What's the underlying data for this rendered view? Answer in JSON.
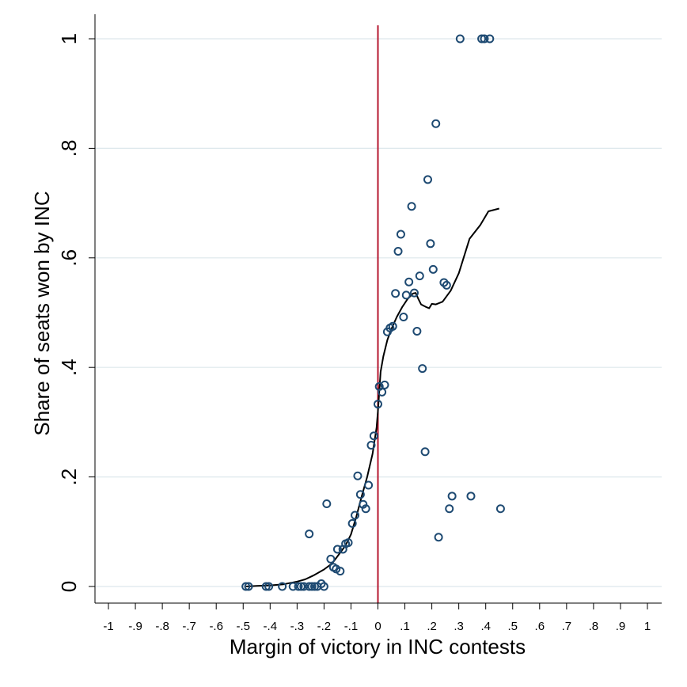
{
  "chart_data": {
    "type": "scatter",
    "title": "",
    "xlabel": "Margin of victory in INC contests",
    "ylabel": "Share of seats won by INC",
    "xlim": [
      -1,
      1
    ],
    "ylim": [
      0,
      1
    ],
    "x_ticks": [
      -1,
      -0.9,
      -0.8,
      -0.7,
      -0.6,
      -0.5,
      -0.4,
      -0.3,
      -0.2,
      -0.1,
      0,
      0.1,
      0.2,
      0.3,
      0.4,
      0.5,
      0.6,
      0.7,
      0.8,
      0.9,
      1
    ],
    "x_tick_labels": [
      "-1",
      "-.9",
      "-.8",
      "-.7",
      "-.6",
      "-.5",
      "-.4",
      "-.3",
      "-.2",
      "-.1",
      "0",
      ".1",
      ".2",
      ".3",
      ".4",
      ".5",
      ".6",
      ".7",
      ".8",
      ".9",
      "1"
    ],
    "y_ticks": [
      0,
      0.2,
      0.4,
      0.6,
      0.8,
      1
    ],
    "y_tick_labels": [
      "0",
      ".2",
      ".4",
      ".6",
      ".8",
      "1"
    ],
    "grid": true,
    "reference_line": {
      "x": 0,
      "color": "#b5172f"
    },
    "colors": {
      "points": "#1e4a72",
      "fit": "#000000",
      "grid": "#dde8ec"
    },
    "series": [
      {
        "type": "scatter",
        "points": [
          [
            -0.49,
            0
          ],
          [
            -0.48,
            0
          ],
          [
            -0.415,
            0
          ],
          [
            -0.405,
            0
          ],
          [
            -0.355,
            0
          ],
          [
            -0.315,
            0
          ],
          [
            -0.295,
            0
          ],
          [
            -0.285,
            0
          ],
          [
            -0.275,
            0
          ],
          [
            -0.255,
            0
          ],
          [
            -0.245,
            0
          ],
          [
            -0.235,
            0
          ],
          [
            -0.225,
            0
          ],
          [
            -0.21,
            0.005
          ],
          [
            -0.2,
            0
          ],
          [
            -0.255,
            0.096
          ],
          [
            -0.19,
            0.151
          ],
          [
            -0.175,
            0.05
          ],
          [
            -0.165,
            0.035
          ],
          [
            -0.155,
            0.032
          ],
          [
            -0.15,
            0.068
          ],
          [
            -0.14,
            0.028
          ],
          [
            -0.13,
            0.068
          ],
          [
            -0.12,
            0.078
          ],
          [
            -0.11,
            0.08
          ],
          [
            -0.095,
            0.115
          ],
          [
            -0.085,
            0.13
          ],
          [
            -0.075,
            0.202
          ],
          [
            -0.065,
            0.168
          ],
          [
            -0.055,
            0.15
          ],
          [
            -0.045,
            0.142
          ],
          [
            -0.035,
            0.185
          ],
          [
            -0.025,
            0.258
          ],
          [
            -0.015,
            0.275
          ],
          [
            0,
            0.333
          ],
          [
            0.005,
            0.365
          ],
          [
            0.015,
            0.355
          ],
          [
            0.025,
            0.368
          ],
          [
            0.035,
            0.465
          ],
          [
            0.045,
            0.472
          ],
          [
            0.055,
            0.475
          ],
          [
            0.065,
            0.535
          ],
          [
            0.075,
            0.612
          ],
          [
            0.085,
            0.643
          ],
          [
            0.095,
            0.492
          ],
          [
            0.105,
            0.532
          ],
          [
            0.115,
            0.556
          ],
          [
            0.125,
            0.694
          ],
          [
            0.135,
            0.536
          ],
          [
            0.145,
            0.466
          ],
          [
            0.155,
            0.567
          ],
          [
            0.165,
            0.398
          ],
          [
            0.175,
            0.246
          ],
          [
            0.185,
            0.743
          ],
          [
            0.195,
            0.626
          ],
          [
            0.205,
            0.579
          ],
          [
            0.215,
            0.845
          ],
          [
            0.225,
            0.09
          ],
          [
            0.245,
            0.555
          ],
          [
            0.255,
            0.55
          ],
          [
            0.265,
            0.142
          ],
          [
            0.275,
            0.165
          ],
          [
            0.305,
            1
          ],
          [
            0.345,
            0.165
          ],
          [
            0.385,
            1
          ],
          [
            0.395,
            1
          ],
          [
            0.415,
            1
          ],
          [
            0.455,
            0.142
          ]
        ]
      },
      {
        "type": "line",
        "points": [
          [
            -0.49,
            0
          ],
          [
            -0.45,
            0.001
          ],
          [
            -0.4,
            0.002
          ],
          [
            -0.35,
            0.004
          ],
          [
            -0.3,
            0.009
          ],
          [
            -0.27,
            0.013
          ],
          [
            -0.24,
            0.02
          ],
          [
            -0.2,
            0.031
          ],
          [
            -0.17,
            0.042
          ],
          [
            -0.15,
            0.055
          ],
          [
            -0.12,
            0.075
          ],
          [
            -0.1,
            0.095
          ],
          [
            -0.08,
            0.128
          ],
          [
            -0.06,
            0.165
          ],
          [
            -0.04,
            0.2
          ],
          [
            -0.02,
            0.242
          ],
          [
            -0.005,
            0.29
          ],
          [
            0,
            0.32
          ],
          [
            0.01,
            0.392
          ],
          [
            0.02,
            0.42
          ],
          [
            0.035,
            0.45
          ],
          [
            0.05,
            0.47
          ],
          [
            0.07,
            0.492
          ],
          [
            0.09,
            0.51
          ],
          [
            0.11,
            0.525
          ],
          [
            0.13,
            0.535
          ],
          [
            0.14,
            0.536
          ],
          [
            0.15,
            0.525
          ],
          [
            0.16,
            0.515
          ],
          [
            0.18,
            0.51
          ],
          [
            0.19,
            0.508
          ],
          [
            0.2,
            0.516
          ],
          [
            0.215,
            0.515
          ],
          [
            0.24,
            0.52
          ],
          [
            0.27,
            0.54
          ],
          [
            0.3,
            0.572
          ],
          [
            0.34,
            0.635
          ],
          [
            0.38,
            0.66
          ],
          [
            0.41,
            0.685
          ],
          [
            0.45,
            0.69
          ]
        ]
      }
    ]
  }
}
